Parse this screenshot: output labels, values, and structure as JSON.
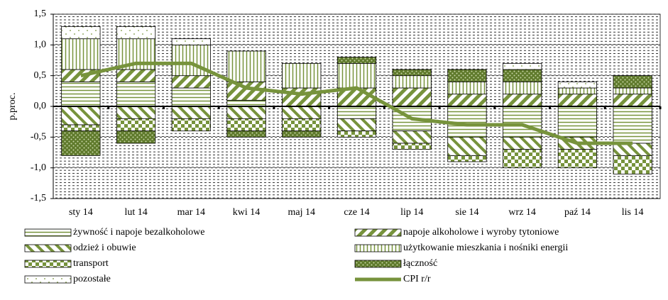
{
  "chart_data": {
    "type": "stacked-bar-line",
    "y_label": "p.proc.",
    "categories": [
      "sty 14",
      "lut 14",
      "mar 14",
      "kwi 14",
      "maj 14",
      "cze 14",
      "lip 14",
      "sie 14",
      "wrz 14",
      "paź 14",
      "lis 14"
    ],
    "series": [
      {
        "name": "żywność i napoje bezalkoholowe",
        "color": "#77933c",
        "pattern": "hlines",
        "values": [
          0.4,
          0.4,
          0.3,
          0.1,
          0,
          -0.2,
          -0.4,
          -0.5,
          -0.5,
          -0.5,
          -0.6
        ]
      },
      {
        "name": "napoje alkoholowe i wyroby tytoniowe",
        "color": "#77933c",
        "pattern": "backslash",
        "values": [
          0.2,
          0.2,
          0.2,
          0.3,
          0.3,
          0.3,
          0.3,
          0.2,
          0.2,
          0.2,
          0.2
        ]
      },
      {
        "name": "odzież i obuwie",
        "color": "#77933c",
        "pattern": "slash",
        "values": [
          -0.3,
          -0.2,
          -0.2,
          -0.2,
          -0.2,
          -0.2,
          -0.2,
          -0.3,
          -0.2,
          -0.2,
          -0.2
        ]
      },
      {
        "name": "użytkowanie mieszkania i nośniki energii",
        "color": "#77933c",
        "pattern": "vlines",
        "values": [
          0.5,
          0.5,
          0.5,
          0.5,
          0.4,
          0.4,
          0.2,
          0.2,
          0.2,
          0.1,
          0.1
        ]
      },
      {
        "name": "transport",
        "color": "#77933c",
        "pattern": "checker",
        "values": [
          -0.1,
          -0.2,
          -0.2,
          -0.2,
          -0.2,
          -0.1,
          -0.1,
          -0.1,
          -0.3,
          -0.3,
          -0.3
        ]
      },
      {
        "name": "łączność",
        "color": "#77933c",
        "pattern": "dots",
        "values": [
          -0.4,
          -0.2,
          0,
          -0.1,
          -0.1,
          0.1,
          0.1,
          0.2,
          0.2,
          0,
          0.2
        ]
      },
      {
        "name": "pozostałe",
        "color": "#77933c",
        "pattern": "sparse",
        "values": [
          0.2,
          0.2,
          0.1,
          0,
          0,
          0,
          0,
          0,
          0.1,
          0.1,
          0
        ]
      },
      {
        "name": "CPI r/r",
        "color": "#77933c",
        "kind": "line",
        "values": [
          0.5,
          0.7,
          0.7,
          0.3,
          0.2,
          0.3,
          -0.2,
          -0.3,
          -0.3,
          -0.6,
          -0.6
        ]
      }
    ],
    "ylim": [
      -1.5,
      1.5
    ],
    "yticks": [
      {
        "value": -1.5,
        "label": "-1,5"
      },
      {
        "value": -1,
        "label": "-1,0"
      },
      {
        "value": -0.5,
        "label": "-0,5"
      },
      {
        "value": 0,
        "label": "0,0"
      },
      {
        "value": 0.5,
        "label": "0,5"
      },
      {
        "value": 1,
        "label": "1,0"
      },
      {
        "value": 1.5,
        "label": "1,5"
      }
    ],
    "grid": true
  }
}
